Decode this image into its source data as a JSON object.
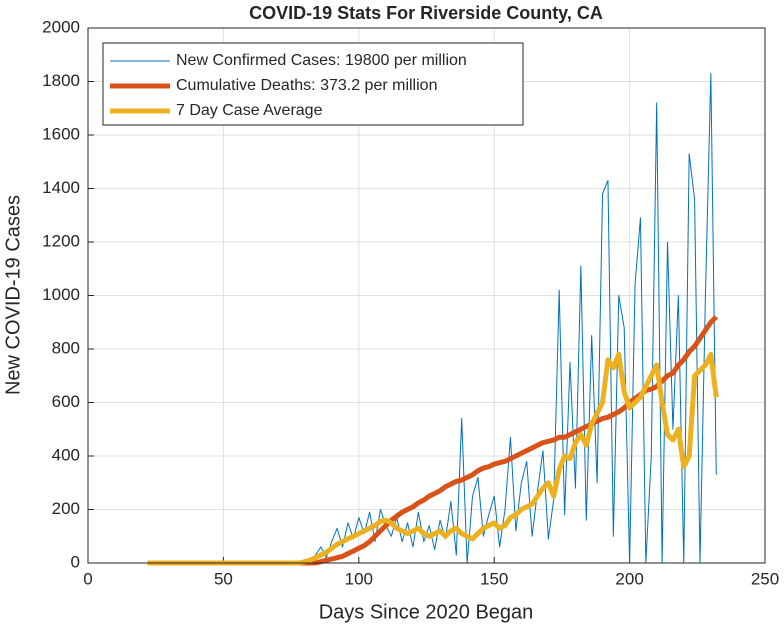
{
  "chart_data": {
    "type": "line",
    "title": "COVID-19 Stats For Riverside County, CA",
    "xlabel": "Days Since 2020 Began",
    "ylabel": "New COVID-19 Cases",
    "xlim": [
      0,
      250
    ],
    "xticks": [
      0,
      50,
      100,
      150,
      200,
      250
    ],
    "ylim": [
      0,
      2000
    ],
    "yticks": [
      0,
      200,
      400,
      600,
      800,
      1000,
      1200,
      1400,
      1600,
      1800,
      2000
    ],
    "grid": true,
    "legend": "upper left",
    "x": [
      22,
      24,
      26,
      28,
      30,
      32,
      34,
      36,
      38,
      40,
      42,
      44,
      46,
      48,
      50,
      52,
      54,
      56,
      58,
      60,
      62,
      64,
      66,
      68,
      70,
      72,
      74,
      76,
      78,
      80,
      82,
      84,
      86,
      88,
      90,
      92,
      94,
      96,
      98,
      100,
      102,
      104,
      106,
      108,
      110,
      112,
      114,
      116,
      118,
      120,
      122,
      124,
      126,
      128,
      130,
      132,
      134,
      136,
      138,
      140,
      142,
      144,
      146,
      148,
      150,
      152,
      154,
      156,
      158,
      160,
      162,
      164,
      166,
      168,
      170,
      172,
      174,
      176,
      178,
      180,
      182,
      184,
      186,
      188,
      190,
      192,
      194,
      196,
      198,
      200,
      202,
      204,
      206,
      208,
      210,
      212,
      214,
      216,
      218,
      220,
      222,
      224,
      226,
      228,
      230,
      232
    ],
    "series": [
      {
        "name": "New Confirmed Cases: 19800 per million",
        "color": "#0072BD",
        "width": 1,
        "values": [
          0,
          0,
          0,
          0,
          0,
          0,
          0,
          0,
          0,
          0,
          0,
          0,
          0,
          0,
          0,
          0,
          0,
          0,
          0,
          0,
          0,
          0,
          0,
          0,
          0,
          0,
          0,
          0,
          0,
          0,
          10,
          30,
          60,
          20,
          80,
          130,
          60,
          150,
          90,
          170,
          110,
          190,
          80,
          200,
          140,
          100,
          170,
          80,
          150,
          60,
          190,
          80,
          140,
          50,
          160,
          90,
          230,
          30,
          540,
          0,
          250,
          320,
          100,
          180,
          250,
          60,
          200,
          470,
          120,
          300,
          380,
          100,
          270,
          420,
          90,
          240,
          1020,
          180,
          750,
          280,
          1110,
          160,
          850,
          300,
          1380,
          1430,
          100,
          1000,
          880,
          0,
          1040,
          1290,
          0,
          400,
          1720,
          0,
          1200,
          500,
          1000,
          0,
          1530,
          1360,
          0,
          1000,
          1830,
          330
        ]
      },
      {
        "name": "Cumulative Deaths: 373.2 per million",
        "color": "#D95319",
        "width": 5,
        "values": [
          0,
          0,
          0,
          0,
          0,
          0,
          0,
          0,
          0,
          0,
          0,
          0,
          0,
          0,
          0,
          0,
          0,
          0,
          0,
          0,
          0,
          0,
          0,
          0,
          0,
          0,
          0,
          0,
          0,
          0,
          0,
          0,
          5,
          10,
          15,
          20,
          25,
          35,
          45,
          55,
          65,
          80,
          100,
          120,
          140,
          160,
          175,
          190,
          200,
          210,
          225,
          235,
          250,
          260,
          270,
          285,
          295,
          305,
          310,
          320,
          330,
          345,
          355,
          360,
          370,
          375,
          380,
          390,
          400,
          410,
          420,
          430,
          440,
          450,
          455,
          460,
          470,
          470,
          480,
          490,
          500,
          510,
          520,
          530,
          540,
          545,
          555,
          565,
          580,
          600,
          615,
          630,
          645,
          650,
          660,
          680,
          700,
          710,
          740,
          760,
          790,
          810,
          840,
          870,
          900,
          920
        ]
      },
      {
        "name": "7 Day Case Average",
        "color": "#EDB120",
        "width": 5,
        "values": [
          0,
          0,
          0,
          0,
          0,
          0,
          0,
          0,
          0,
          0,
          0,
          0,
          0,
          0,
          0,
          0,
          0,
          0,
          0,
          0,
          0,
          0,
          0,
          0,
          0,
          0,
          0,
          0,
          0,
          5,
          10,
          20,
          30,
          40,
          55,
          70,
          80,
          90,
          100,
          110,
          120,
          130,
          140,
          155,
          160,
          150,
          130,
          120,
          110,
          120,
          130,
          110,
          100,
          110,
          120,
          100,
          120,
          130,
          110,
          100,
          90,
          110,
          130,
          140,
          150,
          130,
          140,
          170,
          180,
          200,
          210,
          220,
          250,
          280,
          300,
          250,
          350,
          400,
          390,
          450,
          480,
          440,
          520,
          560,
          600,
          760,
          730,
          780,
          640,
          580,
          600,
          620,
          660,
          700,
          740,
          600,
          480,
          460,
          500,
          360,
          400,
          700,
          720,
          740,
          780,
          620
        ]
      }
    ]
  }
}
